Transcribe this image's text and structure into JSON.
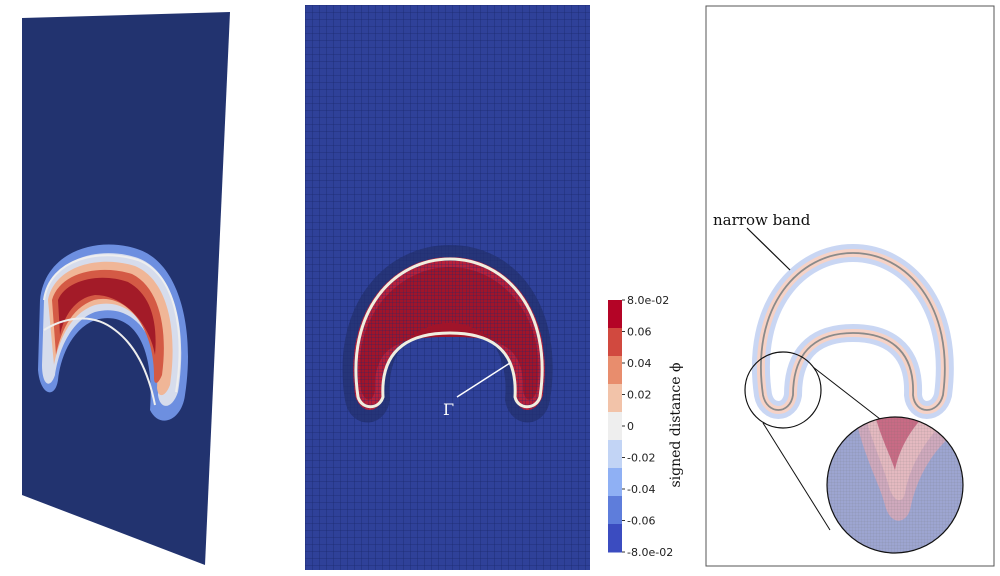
{
  "figure": {
    "panels": [
      {
        "name": "3d-surface-view",
        "description_label": ""
      },
      {
        "name": "mesh-grid-view",
        "description_label": ""
      },
      {
        "name": "narrow-band-view",
        "description_label": ""
      }
    ]
  },
  "grid_panel": {
    "interface_label": "Γ"
  },
  "band_panel": {
    "narrow_band_label": "narrow band"
  },
  "colorbar": {
    "title": "signed distance ϕ",
    "ticks": [
      "8.0e-02",
      "0.06",
      "0.04",
      "0.02",
      "0",
      "-0.02",
      "-0.04",
      "-0.06",
      "-8.0e-02"
    ],
    "min": -0.08,
    "max": 0.08,
    "colors": [
      "#3b4cc0",
      "#5e7ddb",
      "#8fb0f4",
      "#c2d4f5",
      "#eeeeee",
      "#f2c3a9",
      "#e88d6d",
      "#d1493f",
      "#b40426"
    ]
  }
}
